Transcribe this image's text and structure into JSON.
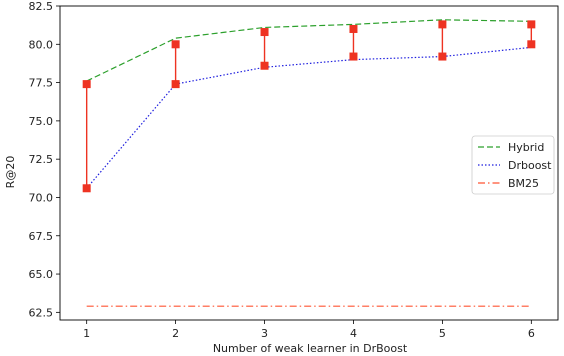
{
  "chart_data": {
    "type": "line",
    "xlabel": "Number of weak learner in DrBoost",
    "ylabel": "R@20",
    "x": [
      1,
      2,
      3,
      4,
      5,
      6
    ],
    "xlim": [
      0.7,
      6.3
    ],
    "ylim": [
      62.0,
      82.5
    ],
    "yticks": [
      62.5,
      65.0,
      67.5,
      70.0,
      72.5,
      75.0,
      77.5,
      80.0,
      82.5
    ],
    "ytick_labels": [
      "62.5",
      "65.0",
      "67.5",
      "70.0",
      "72.5",
      "75.0",
      "77.5",
      "80.0",
      "82.5"
    ],
    "xtick_labels": [
      "1",
      "2",
      "3",
      "4",
      "5",
      "6"
    ],
    "series": [
      {
        "name": "Hybrid",
        "values": [
          77.6,
          80.4,
          81.1,
          81.3,
          81.6,
          81.5
        ],
        "color": "#2ca02c",
        "dash": "6,3"
      },
      {
        "name": "Drboost",
        "values": [
          70.6,
          77.4,
          78.5,
          79.0,
          79.2,
          79.8
        ],
        "color": "#1f1fdf",
        "dash": "1.5,2"
      },
      {
        "name": "BM25",
        "values": [
          62.9,
          62.9,
          62.9,
          62.9,
          62.9,
          62.9
        ],
        "color": "#ff5533",
        "dash": "7,3,1.5,3"
      }
    ],
    "range_markers": {
      "color": "#ee3322",
      "low": [
        70.6,
        77.4,
        78.6,
        79.2,
        79.2,
        80.0
      ],
      "high": [
        77.4,
        80.0,
        80.8,
        81.0,
        81.3,
        81.3
      ]
    },
    "legend_position": "center-right",
    "grid": false
  }
}
